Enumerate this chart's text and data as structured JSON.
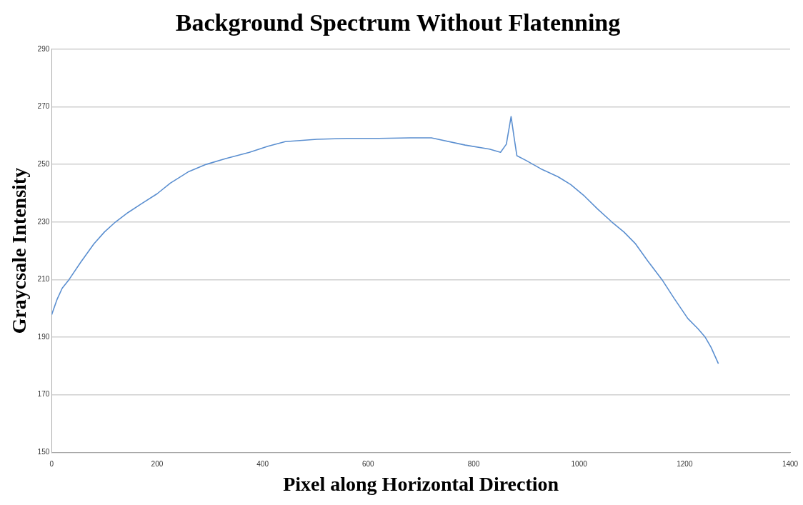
{
  "chart_data": {
    "type": "line",
    "title": "Background Spectrum Without Flatenning",
    "xlabel": "Pixel along Horizontal Direction",
    "ylabel": "Graycsale Intensity",
    "x": [
      0,
      10,
      20,
      33,
      55,
      80,
      100,
      121,
      145,
      170,
      200,
      225,
      260,
      293,
      330,
      375,
      410,
      443,
      503,
      560,
      620,
      680,
      720,
      784,
      830,
      851,
      862,
      871,
      877,
      882,
      900,
      927,
      960,
      984,
      1010,
      1035,
      1062,
      1085,
      1107,
      1130,
      1157,
      1180,
      1206,
      1225,
      1239,
      1250,
      1264
    ],
    "series": [
      {
        "color": "#5b8fd0",
        "values": [
          197.8,
          203,
          207,
          210,
          216,
          222.4,
          226.5,
          230,
          233.3,
          236.3,
          239.8,
          243.5,
          247.5,
          250,
          252,
          254.2,
          256.3,
          257.9,
          258.7,
          259,
          259,
          259.2,
          259.2,
          256.7,
          255.3,
          254.2,
          257,
          266.6,
          259,
          253,
          251.3,
          248.5,
          245.7,
          243,
          239,
          234.5,
          230,
          226.5,
          222.4,
          216.5,
          210,
          203.5,
          196.5,
          193,
          190,
          186.5,
          180.8
        ]
      }
    ],
    "xlim": [
      0,
      1400
    ],
    "xticks": [
      0,
      200,
      400,
      600,
      800,
      1000,
      1200,
      1400
    ],
    "ylim": [
      150,
      290
    ],
    "yticks": [
      150,
      170,
      190,
      210,
      230,
      250,
      270,
      290
    ],
    "grid": "y",
    "legend": false,
    "marker": "none",
    "line_style": "solid"
  }
}
